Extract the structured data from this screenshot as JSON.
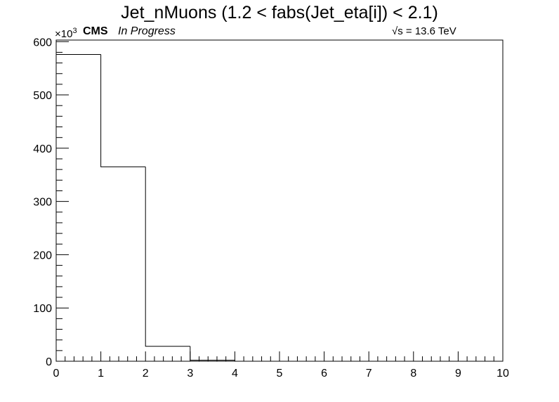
{
  "chart_data": {
    "type": "histogram",
    "title": "Jet_nMuons (1.2 < fabs(Jet_eta[i]) < 2.1)",
    "experiment_label": "CMS",
    "status_label": "In Progress",
    "energy_label": "s = 13.6 TeV",
    "exponent_label": "×10",
    "exponent_power": "3",
    "bin_edges": [
      0,
      1,
      2,
      3,
      4,
      5,
      6,
      7,
      8,
      9,
      10
    ],
    "values": [
      576,
      365,
      28,
      2,
      0,
      0,
      0,
      0,
      0,
      0
    ],
    "xlim": [
      0,
      10
    ],
    "ylim": [
      0,
      603
    ],
    "x_ticks": [
      "0",
      "1",
      "2",
      "3",
      "4",
      "5",
      "6",
      "7",
      "8",
      "9",
      "10"
    ],
    "y_ticks": [
      "0",
      "100",
      "200",
      "300",
      "400",
      "500",
      "600"
    ],
    "xlabel": "",
    "ylabel": "",
    "grid": false,
    "line_color": "#000000"
  }
}
